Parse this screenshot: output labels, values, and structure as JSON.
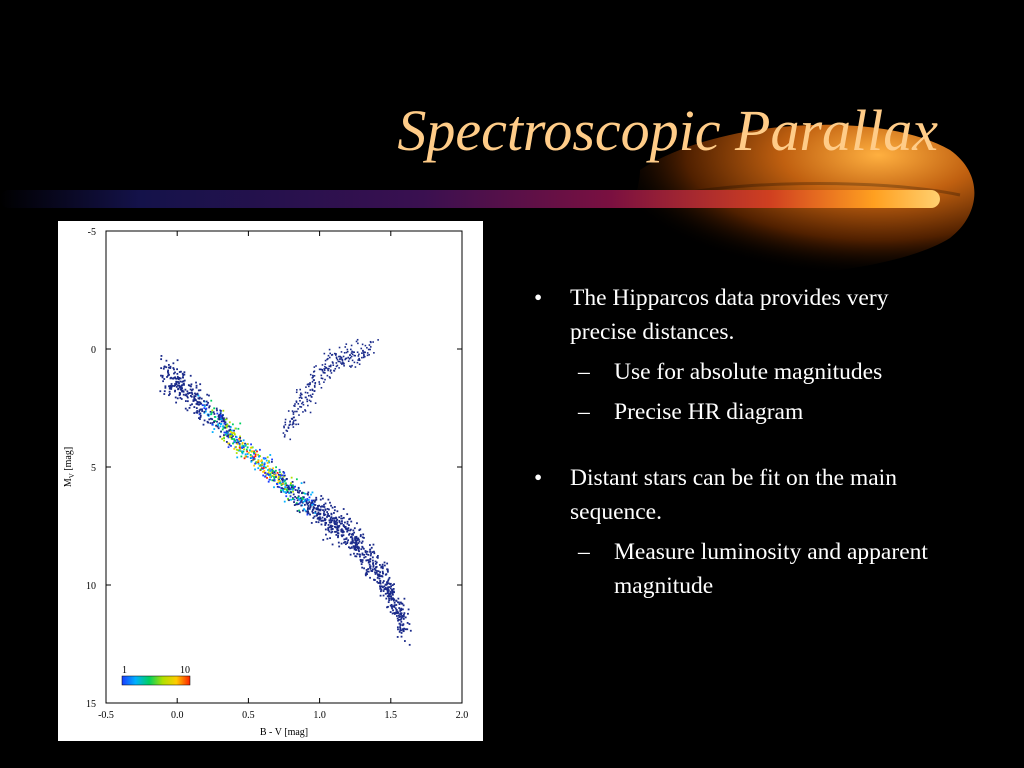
{
  "slide": {
    "title": "Spectroscopic Parallax",
    "title_color": "#ffcc88",
    "bullets": [
      {
        "text": "The Hipparcos data provides very precise distances.",
        "sub": [
          "Use for absolute magnitudes",
          "Precise HR diagram"
        ]
      },
      {
        "text": "Distant stars can be fit on the main sequence.",
        "sub": [
          "Measure luminosity and apparent magnitude"
        ]
      }
    ]
  },
  "chart_data": {
    "type": "scatter",
    "xlabel": "B - V [mag]",
    "ylabel_main": "M",
    "ylabel_sub": "V",
    "ylabel_suffix": " [mag]",
    "xlim": [
      -0.5,
      2.0
    ],
    "ylim": [
      -5,
      15
    ],
    "y_inverted": true,
    "xticks": [
      -0.5,
      0.0,
      0.5,
      1.0,
      1.5,
      2.0
    ],
    "xtick_labels": [
      "-0.5",
      "0.0",
      "0.5",
      "1.0",
      "1.5",
      "2.0"
    ],
    "yticks": [
      -5,
      0,
      5,
      10,
      15
    ],
    "ytick_labels": [
      "-5",
      "0",
      "5",
      "10",
      "15"
    ],
    "colorbar": {
      "min_label": "1",
      "max_label": "10",
      "colors": [
        "#1a3cff",
        "#00b0ff",
        "#00d060",
        "#b0e000",
        "#ffcc00",
        "#ff2000"
      ]
    },
    "series": [
      {
        "component": "main sequence",
        "x": [
          -0.1,
          0.0,
          0.1,
          0.2,
          0.3,
          0.4,
          0.5,
          0.6,
          0.7,
          0.8,
          0.9,
          1.0,
          1.1,
          1.2,
          1.3,
          1.4,
          1.5,
          1.6
        ],
        "y": [
          1.0,
          1.4,
          2.0,
          2.5,
          3.1,
          3.8,
          4.4,
          4.9,
          5.5,
          6.0,
          6.5,
          6.9,
          7.4,
          7.9,
          8.5,
          9.4,
          10.5,
          11.8
        ]
      },
      {
        "component": "giant branch",
        "x": [
          0.75,
          0.8,
          0.9,
          1.0,
          1.1,
          1.2,
          1.35
        ],
        "y": [
          3.5,
          3.0,
          2.0,
          1.0,
          0.5,
          0.3,
          0.0
        ]
      }
    ]
  }
}
